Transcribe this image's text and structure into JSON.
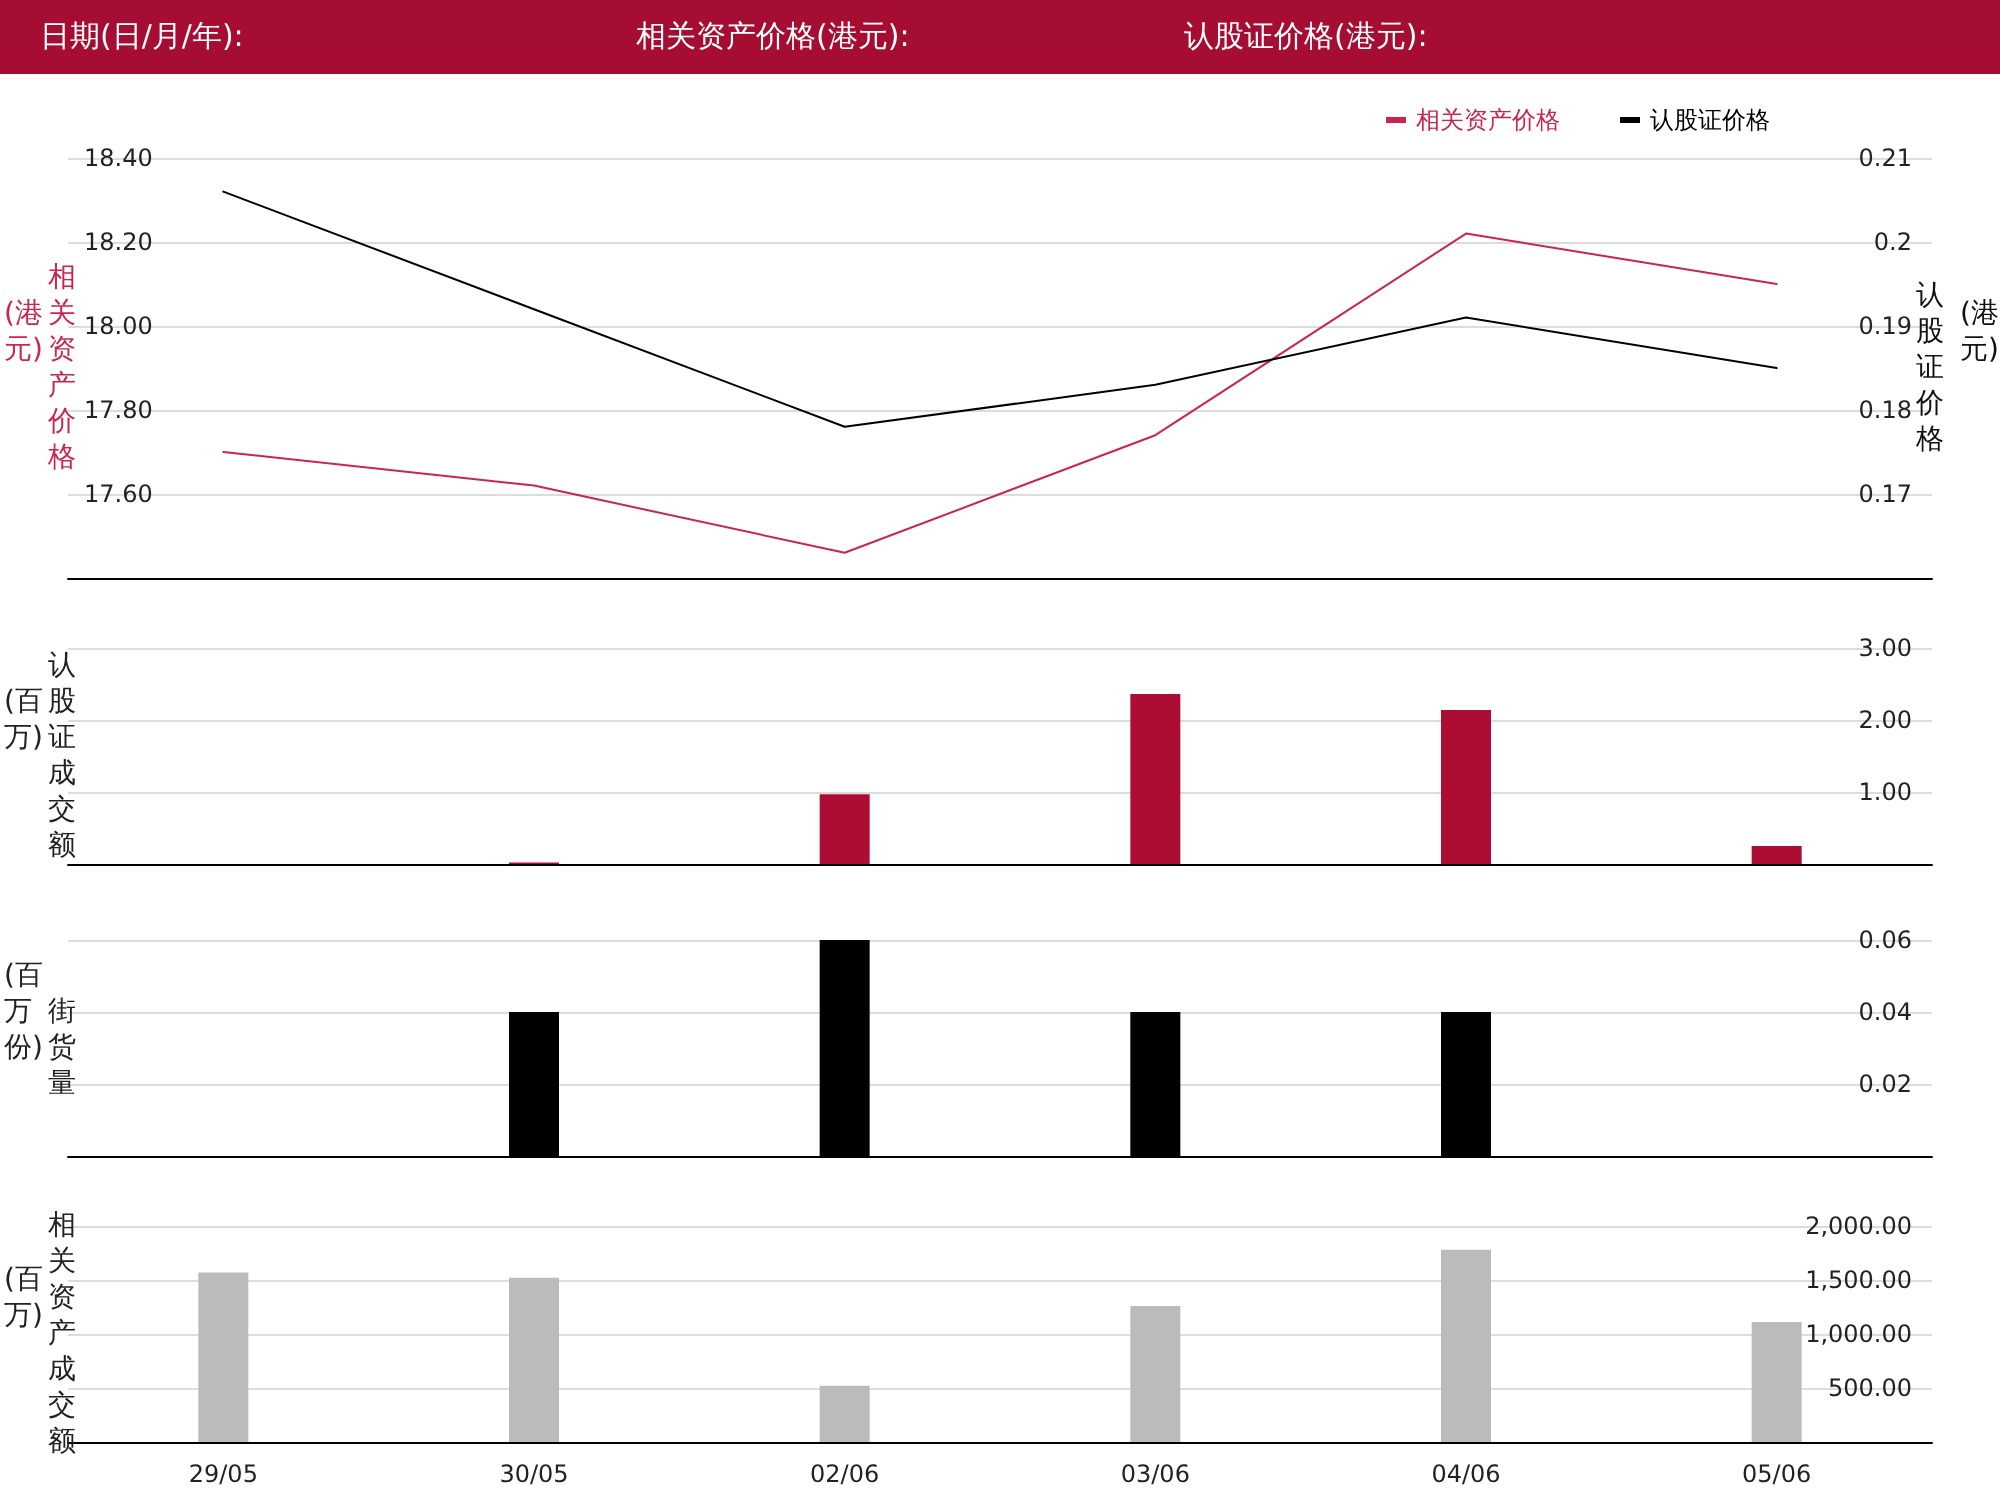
{
  "chart_data": [
    {
      "type": "line",
      "annotations": [
        "日期(日/月/年):",
        "相关资产价格(港元):",
        "认股证价格(港元):"
      ],
      "categories": [
        null,
        null,
        null,
        null,
        null,
        null
      ],
      "ylabel": "相关资产价格(港元)",
      "y2label": "认股证价格(港元)",
      "series": [
        {
          "name": "相关资产价格",
          "color": "#c8254f",
          "values": [
            17.7,
            17.62,
            17.46,
            17.74,
            18.22,
            18.1
          ]
        },
        {
          "name": "认股证价格",
          "color": "#000000",
          "axis": "y2",
          "values": [
            0.206,
            0.192,
            0.178,
            0.183,
            0.191,
            0.185
          ]
        }
      ],
      "ylim": [
        17.4,
        18.4
      ],
      "yticks": [
        {
          "value": 17.6,
          "label": "17.60"
        },
        {
          "value": 17.8,
          "label": "17.80"
        },
        {
          "value": 18.0,
          "label": "18.00"
        },
        {
          "value": 18.2,
          "label": "18.20"
        },
        {
          "value": 18.4,
          "label": "18.40"
        }
      ],
      "y2lim": [
        0.16,
        0.21
      ],
      "y2ticks": [
        0.17,
        0.18,
        0.19,
        0.2,
        0.21
      ],
      "grid": "y",
      "legend": "top right",
      "tick_labels": "y",
      "marker": "none",
      "line_style": "solid"
    },
    {
      "type": "bar",
      "categories": [
        null,
        null,
        null,
        null,
        null,
        null
      ],
      "ylabel": "认股证成交额(百万)",
      "series": [
        {
          "color": "#ad0c33",
          "values": [
            null,
            0.02,
            0.97,
            2.36,
            2.14,
            0.25
          ]
        }
      ],
      "ylim": [
        0,
        3
      ],
      "yticks": [
        {
          "value": 1,
          "label": "1.00"
        },
        {
          "value": 2,
          "label": "2.00"
        },
        {
          "value": 3,
          "label": "3.00"
        }
      ],
      "grid": "y",
      "legend": false,
      "tick_labels": "y"
    },
    {
      "type": "bar",
      "categories": [
        null,
        null,
        null,
        null,
        null,
        null
      ],
      "ylabel": "街货量(百万份)",
      "series": [
        {
          "color": "#000000",
          "values": [
            null,
            0.04,
            0.06,
            0.04,
            0.04,
            null
          ]
        }
      ],
      "ylim": [
        0,
        0.06
      ],
      "yticks": [
        0.02,
        0.04,
        0.06
      ],
      "grid": "y",
      "legend": false,
      "tick_labels": "y"
    },
    {
      "type": "bar",
      "categories": [
        "29/05",
        "30/05",
        "02/06",
        "03/06",
        "04/06",
        "05/06"
      ],
      "ylabel": "相关资产成交额(百万)",
      "series": [
        {
          "color": "#bbbbbb",
          "values": [
            1570,
            1520,
            520,
            1260,
            1780,
            1110
          ]
        }
      ],
      "ylim": [
        0,
        2000
      ],
      "yticks": [
        {
          "value": 500,
          "label": "500.00"
        },
        {
          "value": 1000,
          "label": "1,000.00"
        },
        {
          "value": 1500,
          "label": "1,500.00"
        },
        {
          "value": 2000,
          "label": "2,000.00"
        }
      ],
      "grid": "y",
      "legend": false
    }
  ]
}
